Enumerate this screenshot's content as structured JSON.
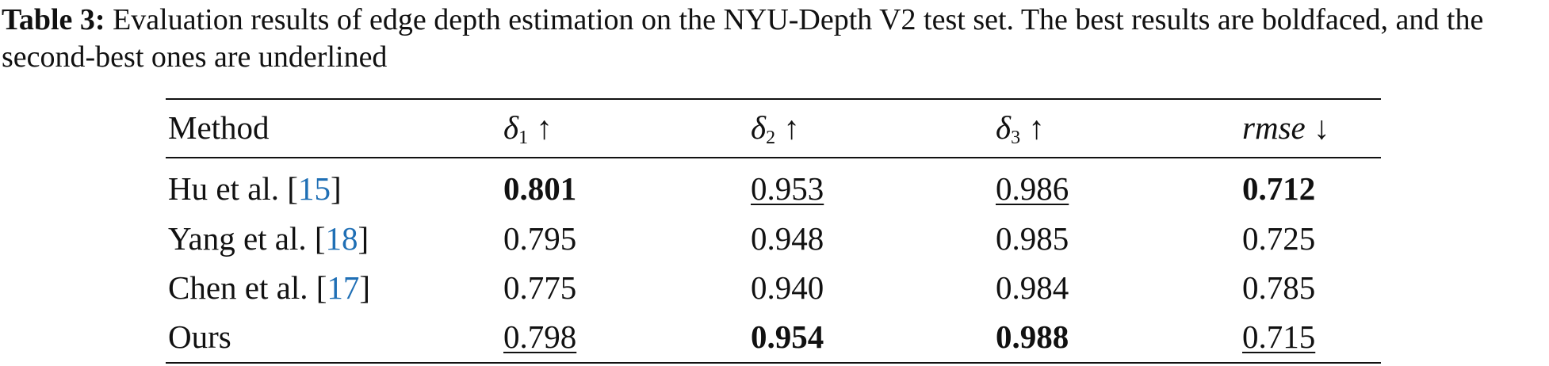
{
  "caption": {
    "label": "Table 3:",
    "text": "Evaluation results of edge depth estimation on the NYU-Depth V2 test set. The best results are boldfaced, and the second-best ones are underlined"
  },
  "table": {
    "header": [
      {
        "text": "Method"
      },
      {
        "symbol": "δ",
        "sub": "1",
        "arrow": "↑"
      },
      {
        "symbol": "δ",
        "sub": "2",
        "arrow": "↑"
      },
      {
        "symbol": "δ",
        "sub": "3",
        "arrow": "↑"
      },
      {
        "italic": "rmse",
        "arrow": "↓"
      }
    ],
    "rows": [
      {
        "method": {
          "name": "Hu et al. ",
          "open": "[",
          "ref": "15",
          "close": "]"
        },
        "cells": [
          {
            "text": "0.801",
            "emphasis": "bold"
          },
          {
            "text": "0.953",
            "emphasis": "underline"
          },
          {
            "text": "0.986",
            "emphasis": "underline"
          },
          {
            "text": "0.712",
            "emphasis": "bold"
          }
        ]
      },
      {
        "method": {
          "name": "Yang et al. ",
          "open": "[",
          "ref": "18",
          "close": "]"
        },
        "cells": [
          {
            "text": "0.795"
          },
          {
            "text": "0.948"
          },
          {
            "text": "0.985"
          },
          {
            "text": "0.725"
          }
        ]
      },
      {
        "method": {
          "name": "Chen et al. ",
          "open": "[",
          "ref": "17",
          "close": "]"
        },
        "cells": [
          {
            "text": "0.775"
          },
          {
            "text": "0.940"
          },
          {
            "text": "0.984"
          },
          {
            "text": "0.785"
          }
        ]
      },
      {
        "method": {
          "name": "Ours"
        },
        "cells": [
          {
            "text": "0.798",
            "emphasis": "underline"
          },
          {
            "text": "0.954",
            "emphasis": "bold"
          },
          {
            "text": "0.988",
            "emphasis": "bold"
          },
          {
            "text": "0.715",
            "emphasis": "underline"
          }
        ]
      }
    ]
  }
}
